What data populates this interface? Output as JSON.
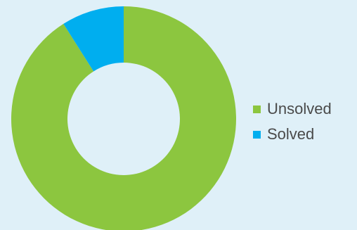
{
  "chart_data": {
    "type": "pie",
    "variant": "donut",
    "categories": [
      "Unsolved",
      "Solved"
    ],
    "values": [
      91,
      9
    ],
    "colors": {
      "Unsolved": "#8cc63f",
      "Solved": "#00aeef"
    },
    "title": "",
    "legend_position": "right"
  },
  "background_color": "#dff0f8",
  "text_color": "#4a4a4a"
}
